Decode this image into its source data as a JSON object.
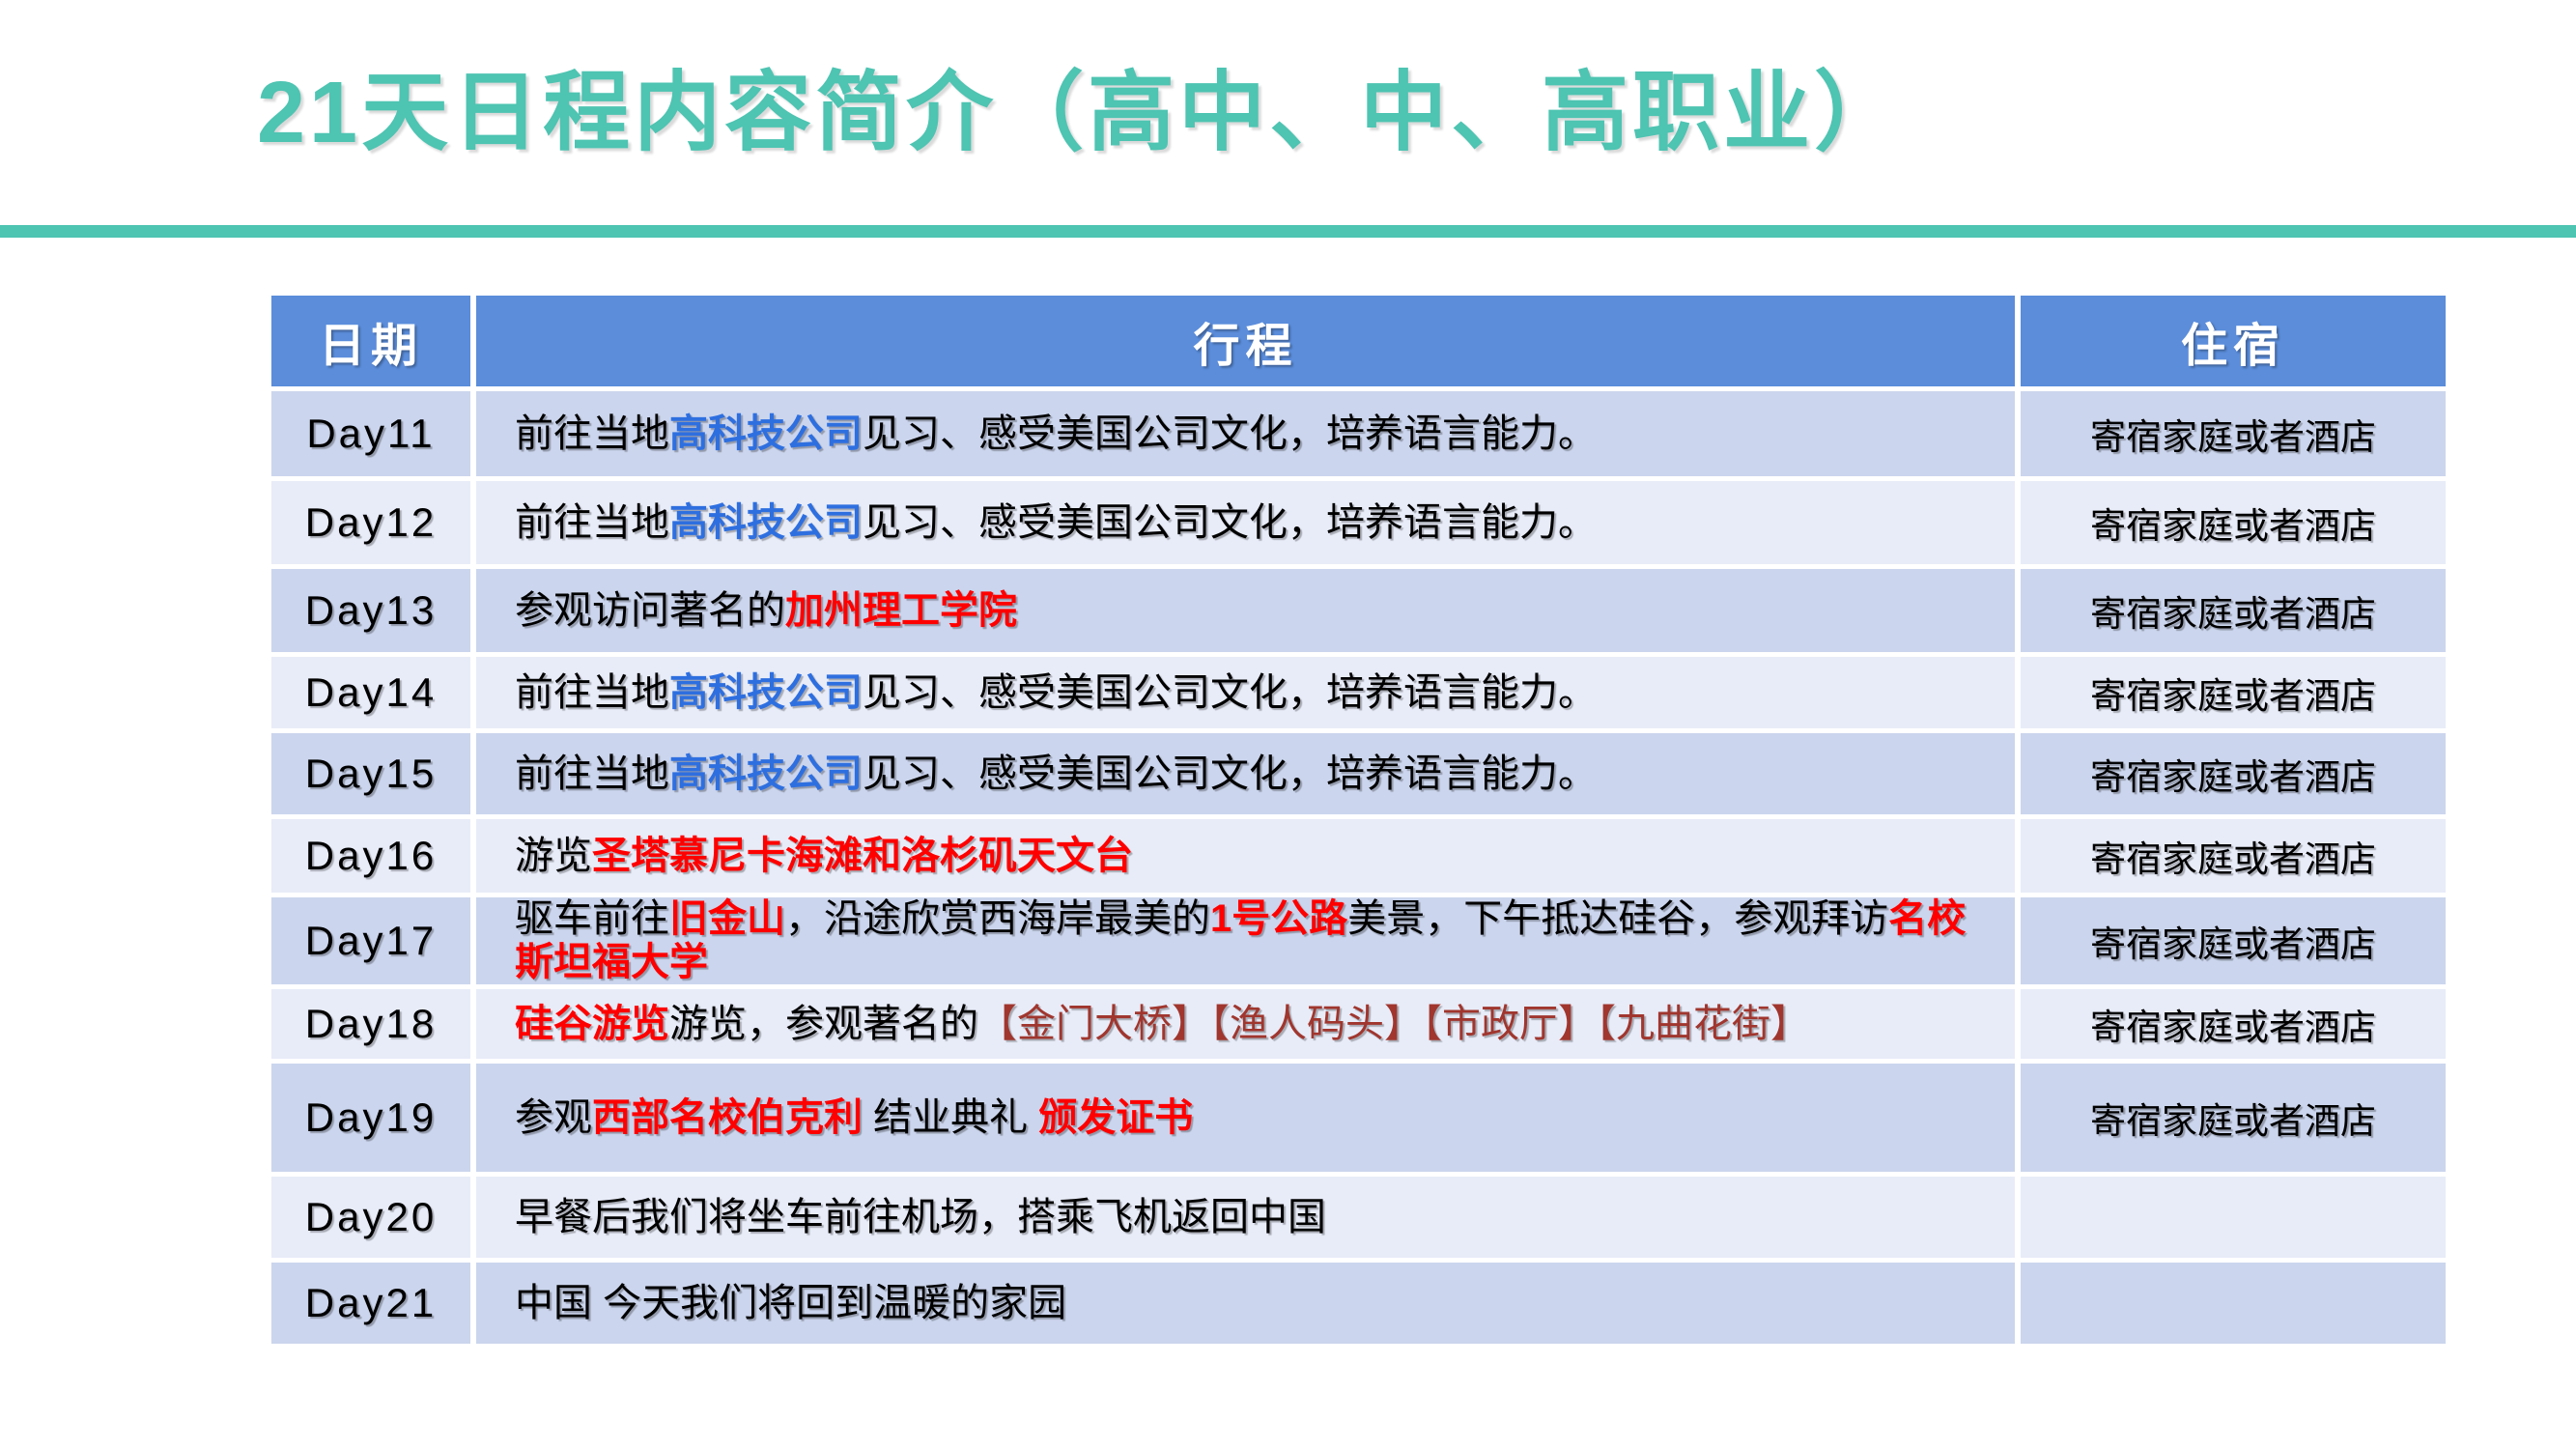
{
  "page": {
    "title": "21天日程内容简介（高中、中、高职业）"
  },
  "colors": {
    "teal": "#4EC4B2",
    "header_blue": "#5B8DDB",
    "band_dark": "#CBD5ED",
    "band_light": "#E8ECF8",
    "text_blue": "#2E6FE0",
    "text_red": "#FF0000",
    "text_darkred": "#A0362E",
    "header_text": "#FFFFFF",
    "body_text": "#000000"
  },
  "table": {
    "headers": [
      "日期",
      "行程",
      "住宿"
    ],
    "rows": [
      {
        "day": "Day11",
        "itinerary": [
          {
            "text": "前往当地",
            "style": "normal"
          },
          {
            "text": "高科技公司",
            "style": "blue"
          },
          {
            "text": "见习、感受美国公司文化，培养语言能力。",
            "style": "normal"
          }
        ],
        "accommodation": "寄宿家庭或者酒店"
      },
      {
        "day": "Day12",
        "itinerary": [
          {
            "text": "前往当地",
            "style": "normal"
          },
          {
            "text": "高科技公司",
            "style": "blue"
          },
          {
            "text": "见习、感受美国公司文化，培养语言能力。",
            "style": "normal"
          }
        ],
        "accommodation": "寄宿家庭或者酒店"
      },
      {
        "day": "Day13",
        "itinerary": [
          {
            "text": "参观访问著名的",
            "style": "normal"
          },
          {
            "text": "加州理工学院",
            "style": "red"
          }
        ],
        "accommodation": "寄宿家庭或者酒店"
      },
      {
        "day": "Day14",
        "itinerary": [
          {
            "text": "前往当地",
            "style": "normal"
          },
          {
            "text": "高科技公司",
            "style": "blue"
          },
          {
            "text": "见习、感受美国公司文化，培养语言能力。",
            "style": "normal"
          }
        ],
        "accommodation": "寄宿家庭或者酒店"
      },
      {
        "day": "Day15",
        "itinerary": [
          {
            "text": "前往当地",
            "style": "normal"
          },
          {
            "text": "高科技公司",
            "style": "blue"
          },
          {
            "text": "见习、感受美国公司文化，培养语言能力。",
            "style": "normal"
          }
        ],
        "accommodation": "寄宿家庭或者酒店"
      },
      {
        "day": "Day16",
        "itinerary": [
          {
            "text": "游览",
            "style": "normal"
          },
          {
            "text": "圣塔慕尼卡海滩和洛杉矶天文台",
            "style": "red"
          }
        ],
        "accommodation": "寄宿家庭或者酒店"
      },
      {
        "day": "Day17",
        "itinerary": [
          {
            "text": "驱车前往",
            "style": "normal"
          },
          {
            "text": "旧金山",
            "style": "red"
          },
          {
            "text": "，沿途欣赏西海岸最美的",
            "style": "normal"
          },
          {
            "text": "1号公路",
            "style": "red"
          },
          {
            "text": "美景，下午抵达硅谷，参观拜访",
            "style": "normal"
          },
          {
            "text": "名校斯坦福大学",
            "style": "red"
          }
        ],
        "accommodation": "寄宿家庭或者酒店"
      },
      {
        "day": "Day18",
        "itinerary": [
          {
            "text": "硅谷游览",
            "style": "red"
          },
          {
            "text": "游览，参观著名的",
            "style": "normal"
          },
          {
            "text": "【金门大桥】【渔人码头】【市政厅】【九曲花街】",
            "style": "darkred"
          }
        ],
        "accommodation": "寄宿家庭或者酒店"
      },
      {
        "day": "Day19",
        "itinerary": [
          {
            "text": "参观",
            "style": "normal"
          },
          {
            "text": "西部名校伯克利",
            "style": "red"
          },
          {
            "text": " 结业典礼 ",
            "style": "normal"
          },
          {
            "text": "颁发证书",
            "style": "red"
          }
        ],
        "accommodation": "寄宿家庭或者酒店"
      },
      {
        "day": "Day20",
        "itinerary": [
          {
            "text": "早餐后我们将坐车前往机场，搭乘飞机返回中国",
            "style": "normal"
          }
        ],
        "accommodation": ""
      },
      {
        "day": "Day21",
        "itinerary": [
          {
            "text": "中国 今天我们将回到温暖的家园",
            "style": "normal"
          }
        ],
        "accommodation": ""
      }
    ]
  }
}
